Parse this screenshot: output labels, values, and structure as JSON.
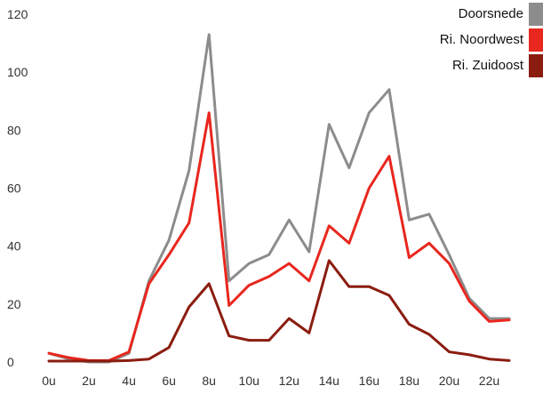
{
  "chart_data": {
    "type": "line",
    "title": "",
    "xlabel": "",
    "ylabel": "",
    "x": [
      0,
      1,
      2,
      3,
      4,
      5,
      6,
      7,
      8,
      9,
      10,
      11,
      12,
      13,
      14,
      15,
      16,
      17,
      18,
      19,
      20,
      21,
      22,
      23
    ],
    "x_tick_labels": [
      "0u",
      "2u",
      "4u",
      "6u",
      "8u",
      "10u",
      "12u",
      "14u",
      "16u",
      "18u",
      "20u",
      "22u"
    ],
    "x_tick_values": [
      0,
      2,
      4,
      6,
      8,
      10,
      12,
      14,
      16,
      18,
      20,
      22
    ],
    "ylim": [
      0,
      120
    ],
    "y_ticks": [
      0,
      20,
      40,
      60,
      80,
      100,
      120
    ],
    "grid": false,
    "legend_position": "top-right",
    "series": [
      {
        "name": "Doorsnede",
        "color": "#8c8c8c",
        "values": [
          3,
          1,
          0,
          0,
          3,
          28,
          42,
          66,
          113,
          28,
          34,
          37,
          49,
          38,
          82,
          67,
          86,
          94,
          49,
          51,
          37,
          22,
          15,
          15
        ]
      },
      {
        "name": "Ri. Noordwest",
        "color": "#e8271e",
        "values": [
          3,
          1.5,
          0.5,
          0.5,
          3.5,
          27,
          37,
          48,
          86,
          19.5,
          26.5,
          29.5,
          34,
          28,
          47,
          41,
          60,
          71,
          36,
          41,
          34,
          21,
          14,
          14.5
        ]
      },
      {
        "name": "Ri. Zuidoost",
        "color": "#8b1d10",
        "values": [
          0.3,
          0.3,
          0.3,
          0.3,
          0.5,
          1,
          5,
          19,
          27,
          9,
          7.5,
          7.5,
          15,
          10,
          35,
          26,
          26,
          23,
          13,
          9.5,
          3.5,
          2.5,
          1,
          0.5
        ]
      }
    ]
  }
}
